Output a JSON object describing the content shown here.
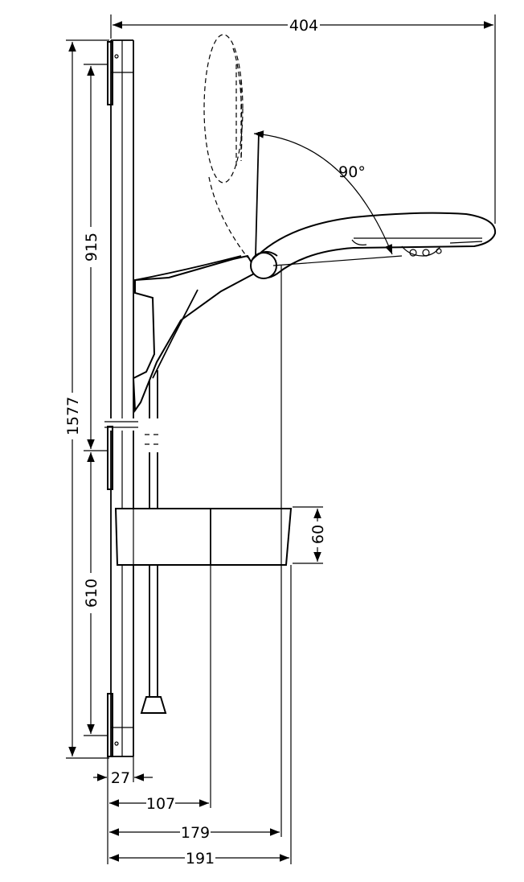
{
  "dimensions": {
    "overall_width": "404",
    "total_height": "1577",
    "upper_section": "915",
    "lower_section": "610",
    "tray_height": "60",
    "bar_depth": "27",
    "depth_107": "107",
    "depth_179": "179",
    "depth_191": "191",
    "tilt_angle": "90°"
  }
}
